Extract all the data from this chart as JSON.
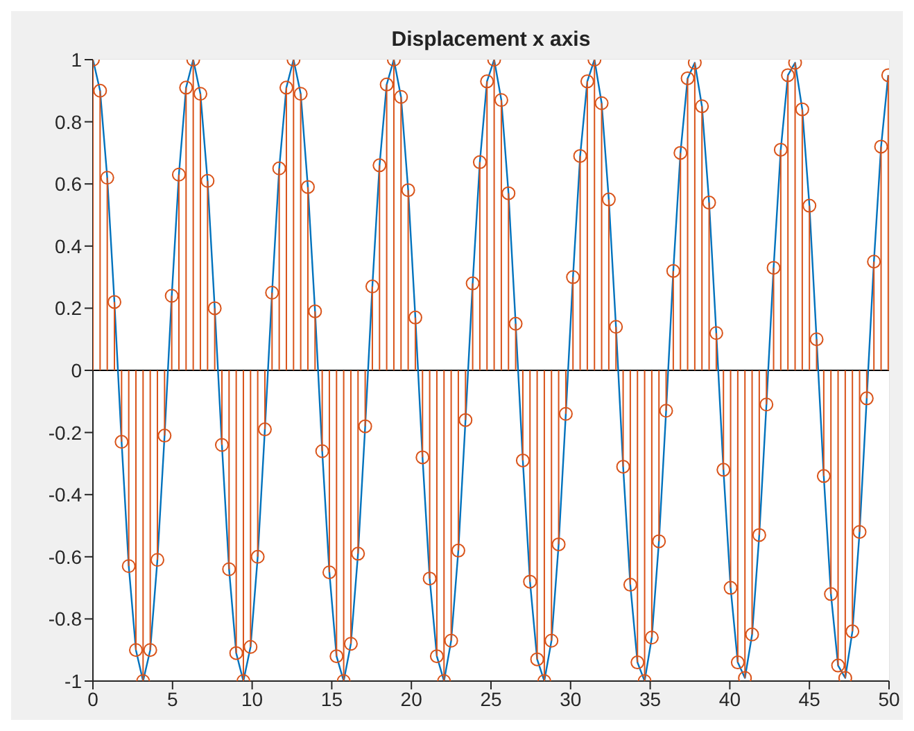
{
  "chart_data": {
    "type": "line",
    "title": "Displacement x axis",
    "x": [
      0,
      0.45,
      0.9,
      1.35,
      1.8,
      2.25,
      2.7,
      3.15,
      3.6,
      4.05,
      4.5,
      4.95,
      5.4,
      5.85,
      6.3,
      6.75,
      7.2,
      7.65,
      8.1,
      8.55,
      9,
      9.45,
      9.9,
      10.35,
      10.8,
      11.25,
      11.7,
      12.15,
      12.6,
      13.05,
      13.5,
      13.95,
      14.4,
      14.85,
      15.3,
      15.75,
      16.2,
      16.65,
      17.1,
      17.55,
      18,
      18.45,
      18.9,
      19.35,
      19.8,
      20.25,
      20.7,
      21.15,
      21.6,
      22.05,
      22.5,
      22.95,
      23.4,
      23.85,
      24.3,
      24.75,
      25.2,
      25.65,
      26.1,
      26.55,
      27,
      27.45,
      27.9,
      28.35,
      28.8,
      29.25,
      29.7,
      30.15,
      30.6,
      31.05,
      31.5,
      31.95,
      32.4,
      32.85,
      33.3,
      33.75,
      34.2,
      34.65,
      35.1,
      35.55,
      36,
      36.45,
      36.9,
      37.35,
      37.8,
      38.25,
      38.7,
      39.15,
      39.6,
      40.05,
      40.5,
      40.95,
      41.4,
      41.85,
      42.3,
      42.75,
      43.2,
      43.65,
      44.1,
      44.55,
      45,
      45.45,
      45.9,
      46.35,
      46.8,
      47.25,
      47.7,
      48.15,
      48.6,
      49.05,
      49.5,
      49.95
    ],
    "series": [
      {
        "type": "line",
        "color": "#0072bd",
        "marker": "none",
        "values": [
          1,
          0.9,
          0.62,
          0.22,
          -0.23,
          -0.63,
          -0.9,
          -1,
          -0.9,
          -0.61,
          -0.21,
          0.24,
          0.63,
          0.91,
          1,
          0.89,
          0.61,
          0.2,
          -0.24,
          -0.64,
          -0.91,
          -1,
          -0.89,
          -0.6,
          -0.19,
          0.25,
          0.65,
          0.91,
          1,
          0.89,
          0.59,
          0.19,
          -0.26,
          -0.65,
          -0.92,
          -1,
          -0.88,
          -0.59,
          -0.18,
          0.27,
          0.66,
          0.92,
          1,
          0.88,
          0.58,
          0.17,
          -0.28,
          -0.67,
          -0.92,
          -1,
          -0.87,
          -0.58,
          -0.16,
          0.28,
          0.67,
          0.93,
          1,
          0.87,
          0.57,
          0.15,
          -0.29,
          -0.68,
          -0.93,
          -1,
          -0.87,
          -0.56,
          -0.14,
          0.3,
          0.69,
          0.93,
          1,
          0.86,
          0.55,
          0.14,
          -0.31,
          -0.69,
          -0.94,
          -1,
          -0.86,
          -0.55,
          -0.13,
          0.32,
          0.7,
          0.94,
          0.99,
          0.85,
          0.54,
          0.12,
          -0.32,
          -0.7,
          -0.94,
          -0.99,
          -0.85,
          -0.53,
          -0.11,
          0.33,
          0.71,
          0.95,
          0.99,
          0.84,
          0.53,
          0.1,
          -0.34,
          -0.72,
          -0.95,
          -0.99,
          -0.84,
          -0.52,
          -0.09,
          0.35,
          0.72,
          0.95
        ]
      },
      {
        "type": "lollipop",
        "color": "#d95319",
        "marker": "circle",
        "values": [
          1,
          0.9,
          0.62,
          0.22,
          -0.23,
          -0.63,
          -0.9,
          -1,
          -0.9,
          -0.61,
          -0.21,
          0.24,
          0.63,
          0.91,
          1,
          0.89,
          0.61,
          0.2,
          -0.24,
          -0.64,
          -0.91,
          -1,
          -0.89,
          -0.6,
          -0.19,
          0.25,
          0.65,
          0.91,
          1,
          0.89,
          0.59,
          0.19,
          -0.26,
          -0.65,
          -0.92,
          -1,
          -0.88,
          -0.59,
          -0.18,
          0.27,
          0.66,
          0.92,
          1,
          0.88,
          0.58,
          0.17,
          -0.28,
          -0.67,
          -0.92,
          -1,
          -0.87,
          -0.58,
          -0.16,
          0.28,
          0.67,
          0.93,
          1,
          0.87,
          0.57,
          0.15,
          -0.29,
          -0.68,
          -0.93,
          -1,
          -0.87,
          -0.56,
          -0.14,
          0.3,
          0.69,
          0.93,
          1,
          0.86,
          0.55,
          0.14,
          -0.31,
          -0.69,
          -0.94,
          -1,
          -0.86,
          -0.55,
          -0.13,
          0.32,
          0.7,
          0.94,
          0.99,
          0.85,
          0.54,
          0.12,
          -0.32,
          -0.7,
          -0.94,
          -0.99,
          -0.85,
          -0.53,
          -0.11,
          0.33,
          0.71,
          0.95,
          0.99,
          0.84,
          0.53,
          0.1,
          -0.34,
          -0.72,
          -0.95,
          -0.99,
          -0.84,
          -0.52,
          -0.09,
          0.35,
          0.72,
          0.95
        ]
      }
    ],
    "xlim": [
      0,
      50
    ],
    "xticks": [
      0,
      5,
      10,
      15,
      20,
      25,
      30,
      35,
      40,
      45,
      50
    ],
    "ylim": [
      -1,
      1
    ],
    "yticks": [
      -1,
      -0.8,
      -0.6,
      -0.4,
      -0.2,
      0,
      0.2,
      0.4,
      0.6,
      0.8,
      1
    ],
    "grid": true,
    "legend": false
  }
}
